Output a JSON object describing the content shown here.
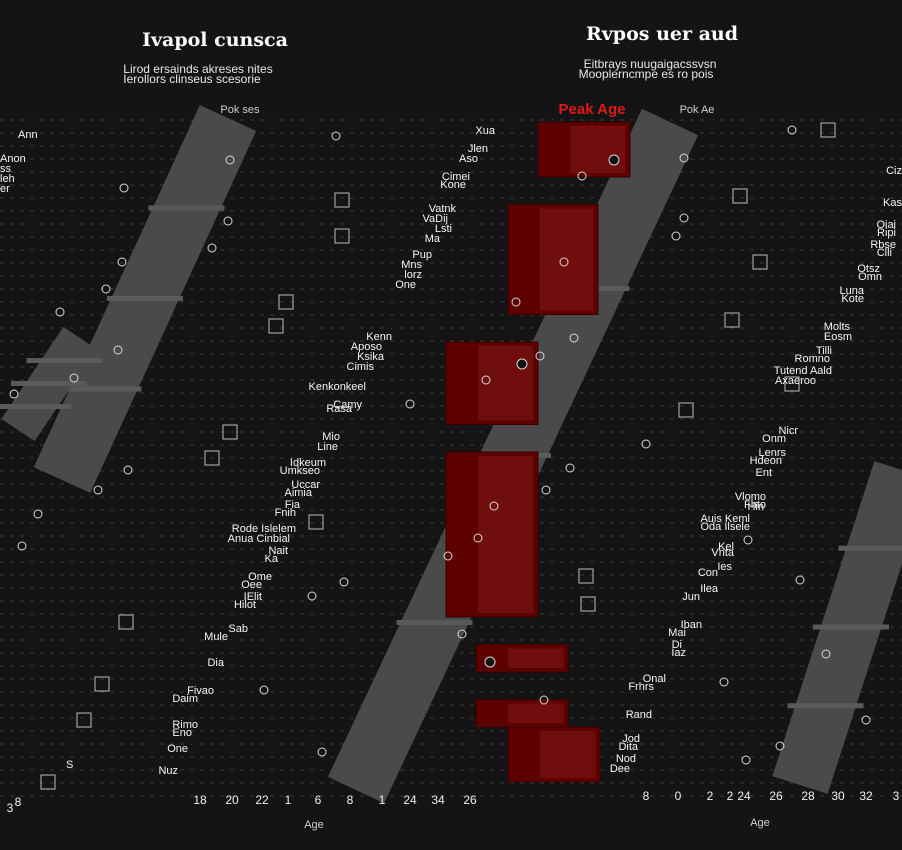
{
  "colors": {
    "background": "#141414",
    "band": "#4a4a4a",
    "peak_fill": "#5c0000",
    "peak_highlight": "#8a1c1c",
    "peak_label": "#e01818",
    "grid": "#3a3a3a",
    "marker_stroke": "#d8d8d8",
    "text": "#f5f5f5"
  },
  "header": {
    "left_title": "Ivapol cunsca",
    "left_subtitle_1": "Lirod ersainds akreses nites",
    "left_subtitle_2": "Ierollors clinseus scesorie",
    "right_title": "Rvpos uer aud",
    "right_subtitle_1": "Eitbrays nuugaigacssvsn",
    "right_subtitle_2": "Mooplerncmpe es ro pois"
  },
  "chart_data": {
    "type": "scatter",
    "title": "",
    "xlabel": "Age",
    "ylabel": "",
    "peak_label": "Peak Age",
    "band_labels": [
      "Pok ses",
      "Pok Ae"
    ],
    "x_ticks_left": [
      "18",
      "20",
      "22",
      "1",
      "6",
      "8",
      "1",
      "24",
      "34",
      "26"
    ],
    "x_ticks_right": [
      "8",
      "0",
      "2",
      "2",
      "24",
      "26",
      "28",
      "30",
      "32",
      "3"
    ],
    "corner_labels": [
      "3",
      "8"
    ],
    "peak_ranges": [
      {
        "y_start": 1,
        "y_end": 3
      },
      {
        "y_start": 4,
        "y_end": 8
      },
      {
        "y_start": 9,
        "y_end": 12
      },
      {
        "y_start": 13,
        "y_end": 19
      },
      {
        "y_start": 20,
        "y_end": 21
      },
      {
        "y_start": 22,
        "y_end": 23
      },
      {
        "y_start": 23,
        "y_end": 25
      }
    ],
    "left_names": [
      "Ann",
      "Anon",
      "ss",
      "leh",
      "er",
      "Xua",
      "Jlen",
      "Aso",
      "Cimei",
      "Kone",
      "Vatnk",
      "VaDij",
      "Lsti",
      "Ma",
      "Pup",
      "Mns",
      "lorz",
      "One",
      "Kenn",
      "Aposo",
      "Ksika",
      "Cimis",
      "Kenkonkeel",
      "Camy",
      "Rasa",
      "Mio",
      "Line",
      "Idkeum",
      "Umkseo",
      "Uccar",
      "Aimia",
      "Fia",
      "Fnih",
      "Rode Islelem",
      "Anua Cinbial",
      "Nait",
      "Ka",
      "Ome",
      "Oee",
      "IElit",
      "Hilot",
      "Sab",
      "Mule",
      "Dia",
      "Fivao",
      "Daim",
      "Rimo",
      "Eno",
      "One",
      "Nuz",
      "S"
    ],
    "right_names": [
      "Ciz",
      "Kas",
      "Oiai",
      "Ripi",
      "Rbse",
      "Clli",
      "Otsz",
      "Omn",
      "Luna",
      "Kote",
      "Molts",
      "Eosm",
      "Tilli",
      "Romno",
      "Tutend Aald",
      "Axaeroo",
      "Nicr",
      "Onm",
      "Lenrs",
      "Hdeon",
      "Ent",
      "Vlomo",
      "Fhto",
      "Hin",
      "Auis Keml",
      "Oda Ilsele",
      "Kel",
      "Vnta",
      "Ies",
      "Con",
      "Ilea",
      "Jun",
      "Iban",
      "Mai",
      "Di",
      "Iaz",
      "Onal",
      "Frhrs",
      "Rand",
      "Jod",
      "Dita",
      "Nod",
      "Dee"
    ]
  }
}
